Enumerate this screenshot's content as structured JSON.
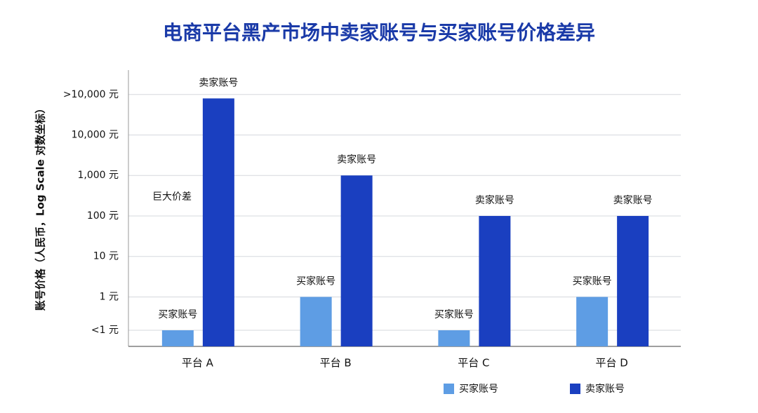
{
  "chart_data": {
    "type": "bar",
    "title": "电商平台黑产市场中卖家账号与买家账号价格差异",
    "y_label": "账号价格（人民币，Log Scale 对数坐标）",
    "categories": [
      "平台 A",
      "平台 B",
      "平台 C",
      "平台 D"
    ],
    "series": [
      {
        "name": "买家账号",
        "color": "#5e9de4",
        "values": [
          0.15,
          1,
          0.15,
          1
        ],
        "value_labels": [
          "买家账号",
          "买家账号",
          "买家账号",
          "买家账号"
        ]
      },
      {
        "name": "卖家账号",
        "color": "#1a3fc0",
        "values": [
          80000,
          1000,
          100,
          100
        ],
        "value_labels": [
          "卖家账号",
          "卖家账号",
          "卖家账号",
          "卖家账号"
        ]
      }
    ],
    "annotation": "巨大价差",
    "log_scale": true,
    "ylim": [
      0.06,
      400000
    ],
    "yticks": [
      {
        "value": 0.15,
        "label": "<1 元"
      },
      {
        "value": 1,
        "label": "1 元"
      },
      {
        "value": 10,
        "label": "10 元"
      },
      {
        "value": 100,
        "label": "100 元"
      },
      {
        "value": 1000,
        "label": "1,000 元"
      },
      {
        "value": 10000,
        "label": "10,000 元"
      },
      {
        "value": 100000,
        "label": ">10,000 元"
      }
    ],
    "grid": true,
    "legend": "bottom"
  }
}
